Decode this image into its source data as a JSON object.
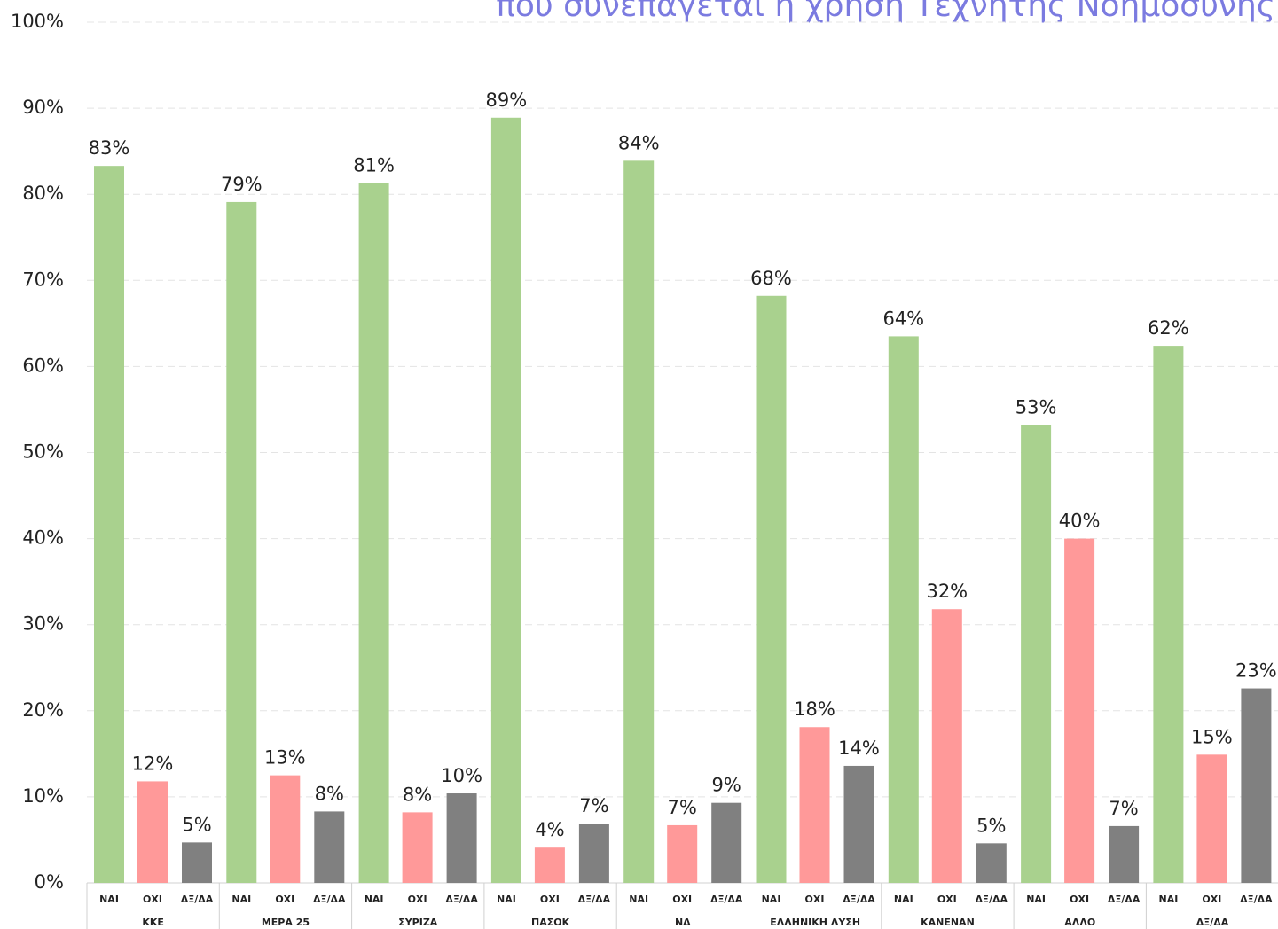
{
  "chart_data": {
    "type": "bar",
    "title": "που συνεπάγεται η χρήση Τεχνητής Νοημοσύνης",
    "categories": [
      "ΚΚΕ",
      "ΜΕΡΑ 25",
      "ΣΥΡΙΖΑ",
      "ΠΑΣΟΚ",
      "ΝΔ",
      "ΕΛΛΗΝΙΚΗ ΛΥΣΗ",
      "ΚΑΝΕΝΑΝ",
      "ΑΛΛΟ",
      "ΔΞ/ΔΑ"
    ],
    "series": [
      {
        "name": "ΝΑΙ",
        "color": "#a9d18e",
        "values": [
          83.3,
          79.1,
          81.3,
          88.9,
          83.9,
          68.2,
          63.5,
          53.2,
          62.4
        ],
        "value_labels": [
          "83%",
          "79%",
          "81%",
          "89%",
          "84%",
          "68%",
          "64%",
          "53%",
          "62%"
        ]
      },
      {
        "name": "ΟΧΙ",
        "color": "#ff9999",
        "values": [
          11.8,
          12.5,
          8.2,
          4.1,
          6.7,
          18.1,
          31.8,
          40.0,
          14.9
        ],
        "value_labels": [
          "12%",
          "13%",
          "8%",
          "4%",
          "7%",
          "18%",
          "32%",
          "40%",
          "15%"
        ]
      },
      {
        "name": "ΔΞ/ΔΑ",
        "color": "#808080",
        "values": [
          4.7,
          8.3,
          10.4,
          6.9,
          9.3,
          13.6,
          4.6,
          6.6,
          22.6
        ],
        "value_labels": [
          "5%",
          "8%",
          "10%",
          "7%",
          "9%",
          "14%",
          "5%",
          "7%",
          "23%"
        ]
      }
    ],
    "ylim": [
      0,
      100
    ],
    "yticks": [
      {
        "value": 0,
        "label": "0%"
      },
      {
        "value": 10,
        "label": "10%"
      },
      {
        "value": 20,
        "label": "20%"
      },
      {
        "value": 30,
        "label": "30%"
      },
      {
        "value": 40,
        "label": "40%"
      },
      {
        "value": 50,
        "label": "50%"
      },
      {
        "value": 60,
        "label": "60%"
      },
      {
        "value": 70,
        "label": "70%"
      },
      {
        "value": 80,
        "label": "80%"
      },
      {
        "value": 90,
        "label": "90%"
      },
      {
        "value": 100,
        "label": "100%"
      }
    ],
    "grid": true
  }
}
